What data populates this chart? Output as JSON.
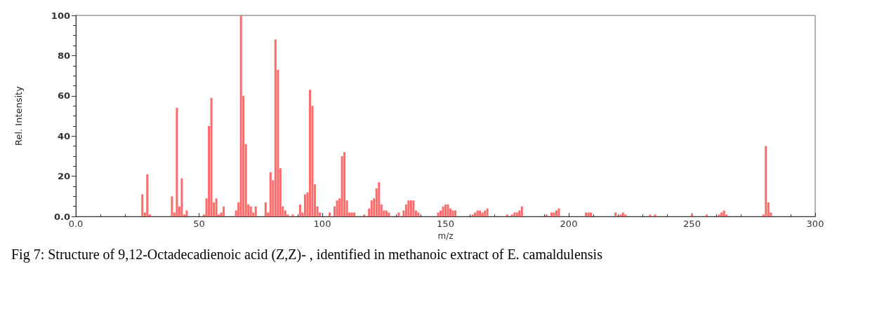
{
  "chart_data": {
    "type": "bar",
    "xlabel": "m/z",
    "ylabel": "Rel. Intensity",
    "annotations": [
      "Fig 7: Structure of 9,12-Octadecadienoic acid (Z,Z)- , identified in methanoic extract of E. camaldulensis"
    ],
    "xlim": [
      0,
      300
    ],
    "xticks": [
      {
        "value": 0,
        "label": "0.0"
      },
      50,
      100,
      150,
      200,
      250,
      300
    ],
    "ylim": [
      0,
      100
    ],
    "yticks": [
      {
        "value": 0,
        "label": "0.0"
      },
      20,
      40,
      60,
      80,
      100
    ],
    "grid": false,
    "series": [
      {
        "color": "#ff6b6b",
        "x": [
          27,
          28,
          29,
          30,
          39,
          40,
          41,
          42,
          43,
          44,
          45,
          52,
          53,
          54,
          55,
          56,
          57,
          58,
          59,
          60,
          65,
          66,
          67,
          68,
          69,
          70,
          71,
          72,
          73,
          77,
          78,
          79,
          80,
          81,
          82,
          83,
          84,
          85,
          86,
          88,
          91,
          92,
          93,
          94,
          95,
          96,
          97,
          98,
          99,
          103,
          105,
          106,
          107,
          108,
          109,
          110,
          111,
          112,
          113,
          117,
          119,
          120,
          121,
          122,
          123,
          124,
          125,
          126,
          127,
          131,
          133,
          134,
          135,
          136,
          137,
          138,
          139,
          147,
          148,
          149,
          150,
          151,
          152,
          153,
          154,
          161,
          162,
          163,
          164,
          165,
          166,
          167,
          175,
          177,
          178,
          179,
          180,
          181,
          191,
          193,
          194,
          195,
          196,
          207,
          208,
          209,
          219,
          221,
          222,
          223,
          233,
          235,
          250,
          256,
          261,
          262,
          263,
          264,
          279,
          280,
          281,
          282
        ],
        "values": [
          11,
          2,
          21,
          1,
          10,
          2,
          54,
          5,
          19,
          1,
          3,
          1,
          9,
          45,
          59,
          7,
          9,
          1,
          2,
          5,
          3,
          7,
          100,
          60,
          36,
          6,
          5,
          2,
          5,
          7,
          2,
          22,
          18,
          88,
          73,
          24,
          5,
          3,
          1,
          1,
          6,
          2,
          11,
          12,
          63,
          55,
          16,
          5,
          2,
          2,
          5,
          8,
          9,
          30,
          32,
          8,
          2,
          2,
          2,
          1,
          4,
          8,
          9,
          14,
          17,
          6,
          3,
          3,
          2,
          2,
          3,
          6,
          8,
          8,
          8,
          3,
          2,
          2,
          3,
          5,
          6,
          6,
          4,
          3,
          3,
          1,
          2,
          3,
          3,
          2,
          3,
          4,
          1,
          1,
          2,
          2,
          3,
          5,
          1,
          2,
          2,
          3,
          4,
          2,
          2,
          2,
          2,
          1,
          2,
          1,
          1,
          1,
          1,
          1,
          1,
          2,
          3,
          1,
          1,
          35,
          7,
          2
        ]
      }
    ]
  }
}
